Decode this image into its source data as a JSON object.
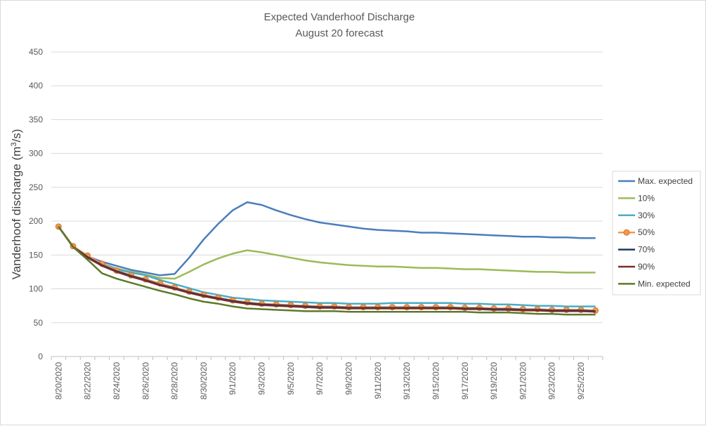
{
  "chart_data": {
    "type": "line",
    "title": "Expected Vanderhoof Discharge",
    "subtitle": "August 20 forecast",
    "ylabel": "Vanderhoof discharge (m³/s)",
    "ylabel_main": "Vanderhoof discharge (m",
    "ylabel_sup": "3",
    "ylabel_end": "/s)",
    "xlabel": "",
    "ylim": [
      0,
      450
    ],
    "yticks": [
      0,
      50,
      100,
      150,
      200,
      250,
      300,
      350,
      400,
      450
    ],
    "grid": "horizontal",
    "legend": "right",
    "x_start": "8/20/2020",
    "x_end": "9/26/2020",
    "x_tick_labels": [
      "8/20/2020",
      "8/22/2020",
      "8/24/2020",
      "8/26/2020",
      "8/28/2020",
      "8/30/2020",
      "9/1/2020",
      "9/3/2020",
      "9/5/2020",
      "9/7/2020",
      "9/9/2020",
      "9/11/2020",
      "9/13/2020",
      "9/15/2020",
      "9/17/2020",
      "9/19/2020",
      "9/21/2020",
      "9/23/2020",
      "9/25/2020"
    ],
    "x": [
      "8/20/2020",
      "8/21/2020",
      "8/22/2020",
      "8/23/2020",
      "8/24/2020",
      "8/25/2020",
      "8/26/2020",
      "8/27/2020",
      "8/28/2020",
      "8/29/2020",
      "8/30/2020",
      "8/31/2020",
      "9/1/2020",
      "9/2/2020",
      "9/3/2020",
      "9/4/2020",
      "9/5/2020",
      "9/6/2020",
      "9/7/2020",
      "9/8/2020",
      "9/9/2020",
      "9/10/2020",
      "9/11/2020",
      "9/12/2020",
      "9/13/2020",
      "9/14/2020",
      "9/15/2020",
      "9/16/2020",
      "9/17/2020",
      "9/18/2020",
      "9/19/2020",
      "9/20/2020",
      "9/21/2020",
      "9/22/2020",
      "9/23/2020",
      "9/24/2020",
      "9/25/2020",
      "9/26/2020"
    ],
    "series": [
      {
        "name": "Max. expected",
        "color": "#4a7ebb",
        "marker": "none",
        "values": [
          192,
          162,
          148,
          140,
          134,
          128,
          124,
          120,
          122,
          146,
          173,
          196,
          216,
          228,
          224,
          216,
          209,
          203,
          198,
          195,
          192,
          189,
          187,
          186,
          185,
          183,
          183,
          182,
          181,
          180,
          179,
          178,
          177,
          177,
          176,
          176,
          175,
          175
        ]
      },
      {
        "name": "10%",
        "color": "#9bbb59",
        "marker": "none",
        "values": [
          192,
          162,
          147,
          137,
          130,
          125,
          121,
          116,
          115,
          125,
          136,
          145,
          152,
          157,
          154,
          150,
          146,
          142,
          139,
          137,
          135,
          134,
          133,
          133,
          132,
          131,
          131,
          130,
          129,
          129,
          128,
          127,
          126,
          125,
          125,
          124,
          124,
          124
        ]
      },
      {
        "name": "30%",
        "color": "#4bacc6",
        "marker": "none",
        "values": [
          192,
          162,
          147,
          137,
          129,
          124,
          120,
          113,
          107,
          101,
          95,
          91,
          87,
          85,
          83,
          82,
          81,
          80,
          79,
          79,
          78,
          78,
          78,
          79,
          79,
          79,
          79,
          79,
          78,
          78,
          77,
          77,
          76,
          75,
          75,
          74,
          74,
          74
        ]
      },
      {
        "name": "50%",
        "color": "#f79646",
        "marker": "circle",
        "values": [
          192,
          163,
          149,
          137,
          127,
          120,
          114,
          108,
          102,
          96,
          91,
          87,
          83,
          80,
          78,
          77,
          76,
          75,
          74,
          74,
          73,
          73,
          73,
          73,
          73,
          73,
          73,
          73,
          72,
          72,
          71,
          71,
          70,
          70,
          69,
          69,
          69,
          68
        ]
      },
      {
        "name": "70%",
        "color": "#1f3864",
        "marker": "none",
        "values": [
          192,
          162,
          147,
          135,
          126,
          119,
          113,
          106,
          101,
          95,
          90,
          86,
          82,
          79,
          77,
          76,
          75,
          74,
          73,
          73,
          72,
          72,
          72,
          72,
          72,
          72,
          72,
          72,
          71,
          71,
          70,
          70,
          69,
          69,
          68,
          68,
          68,
          67
        ]
      },
      {
        "name": "90%",
        "color": "#7b2c2c",
        "marker": "none",
        "values": [
          192,
          162,
          146,
          134,
          125,
          118,
          112,
          105,
          100,
          94,
          89,
          85,
          81,
          78,
          76,
          75,
          74,
          73,
          72,
          72,
          71,
          71,
          71,
          71,
          71,
          71,
          71,
          71,
          70,
          70,
          69,
          69,
          68,
          68,
          67,
          67,
          67,
          66
        ]
      },
      {
        "name": "Min. expected",
        "color": "#5c7a29",
        "marker": "none",
        "values": [
          192,
          162,
          143,
          123,
          115,
          109,
          103,
          97,
          92,
          86,
          81,
          78,
          74,
          71,
          70,
          69,
          68,
          67,
          67,
          67,
          66,
          66,
          66,
          66,
          66,
          66,
          66,
          66,
          66,
          65,
          65,
          65,
          64,
          63,
          63,
          62,
          62,
          62
        ]
      }
    ]
  }
}
